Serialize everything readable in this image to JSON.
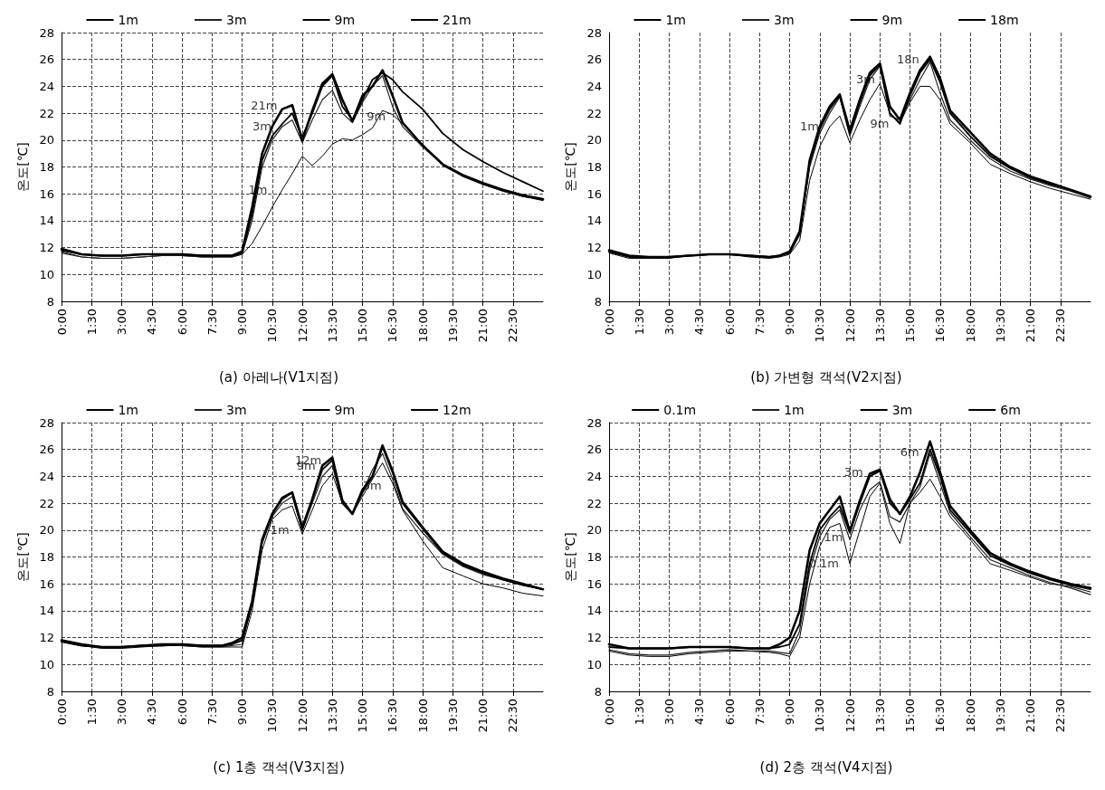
{
  "chart_data": [
    {
      "type": "line",
      "title": "(a) 아레나(V1지점)",
      "ylabel": "온도[℃]",
      "legend": "top",
      "grid": true,
      "xlim": [
        0,
        24
      ],
      "ylim": [
        8,
        28
      ],
      "xticks": [
        {
          "value": 0,
          "label": "0:00"
        },
        {
          "value": 1.5,
          "label": "1:30"
        },
        {
          "value": 3,
          "label": "3:00"
        },
        {
          "value": 4.5,
          "label": "4:30"
        },
        {
          "value": 6,
          "label": "6:00"
        },
        {
          "value": 7.5,
          "label": "7:30"
        },
        {
          "value": 9,
          "label": "9:00"
        },
        {
          "value": 10.5,
          "label": "10:30"
        },
        {
          "value": 12,
          "label": "12:00"
        },
        {
          "value": 13.5,
          "label": "13:30"
        },
        {
          "value": 15,
          "label": "15:00"
        },
        {
          "value": 16.5,
          "label": "16:30"
        },
        {
          "value": 18,
          "label": "18:00"
        },
        {
          "value": 19.5,
          "label": "19:30"
        },
        {
          "value": 21,
          "label": "21:00"
        },
        {
          "value": 22.5,
          "label": "22:30"
        }
      ],
      "yticks": [
        8,
        10,
        12,
        14,
        16,
        18,
        20,
        22,
        24,
        26,
        28
      ],
      "x": [
        0,
        1,
        2,
        3,
        4,
        5,
        6,
        7,
        8,
        8.5,
        9,
        9.5,
        10,
        10.5,
        11,
        11.5,
        12,
        12.5,
        13,
        13.5,
        14,
        14.5,
        15,
        15.5,
        16,
        16.5,
        17,
        18,
        19,
        20,
        21,
        22,
        23,
        24
      ],
      "series": [
        {
          "name": "1m",
          "color": "#000000",
          "values": [
            11.7,
            11.3,
            11.2,
            11.2,
            11.3,
            11.4,
            11.4,
            11.3,
            11.3,
            11.3,
            11.5,
            12.3,
            13.6,
            15,
            16.3,
            17.5,
            18.8,
            18.1,
            18.8,
            19.7,
            20.1,
            20,
            20.4,
            20.9,
            22.2,
            21.9,
            21.2,
            19.7,
            18.1,
            17.3,
            16.7,
            16.2,
            15.8,
            15.5
          ]
        },
        {
          "name": "3m",
          "color": "#222222",
          "values": [
            11.6,
            11.3,
            11.2,
            11.2,
            11.3,
            11.4,
            11.4,
            11.3,
            11.3,
            11.3,
            11.5,
            14,
            18,
            20,
            21,
            21.5,
            19.8,
            21.5,
            23,
            23.7,
            22,
            21.3,
            22.8,
            24,
            24.8,
            22.5,
            21,
            19.5,
            18.2,
            17.3,
            16.7,
            16.2,
            15.8,
            15.6
          ]
        },
        {
          "name": "9m",
          "color": "#000000",
          "values": [
            11.8,
            11.5,
            11.4,
            11.4,
            11.5,
            11.5,
            11.5,
            11.4,
            11.4,
            11.4,
            11.6,
            14.5,
            18.5,
            20.3,
            21.2,
            22,
            20.2,
            22,
            24,
            24.8,
            22.5,
            21.5,
            23,
            24.5,
            25,
            24.5,
            23.6,
            22.3,
            20.5,
            19.3,
            18.4,
            17.6,
            16.9,
            16.2
          ]
        },
        {
          "name": "21m",
          "color": "#000000",
          "values": [
            11.9,
            11.5,
            11.4,
            11.4,
            11.5,
            11.5,
            11.5,
            11.4,
            11.4,
            11.4,
            11.7,
            15,
            19,
            21,
            22.3,
            22.6,
            20,
            22.2,
            24.2,
            24.9,
            23,
            21.4,
            23.3,
            24,
            25.2,
            23.3,
            21.3,
            19.6,
            18.2,
            17.4,
            16.8,
            16.3,
            15.9,
            15.6
          ]
        }
      ],
      "annotations": [
        {
          "text": "21m",
          "x": 11.3,
          "y": 22.6
        },
        {
          "text": "3m",
          "x": 11,
          "y": 21
        },
        {
          "text": "1m",
          "x": 10.8,
          "y": 16.3
        },
        {
          "text": "9m",
          "x": 16.7,
          "y": 21.8
        }
      ]
    },
    {
      "type": "line",
      "title": "(b) 가변형 객석(V2지점)",
      "ylabel": "온도[℃]",
      "legend": "top",
      "grid": "x",
      "xlim": [
        0,
        24
      ],
      "ylim": [
        8,
        28
      ],
      "xticks": [
        {
          "value": 0,
          "label": "0:00"
        },
        {
          "value": 1.5,
          "label": "1:30"
        },
        {
          "value": 3,
          "label": "3:00"
        },
        {
          "value": 4.5,
          "label": "4:30"
        },
        {
          "value": 6,
          "label": "6:00"
        },
        {
          "value": 7.5,
          "label": "7:30"
        },
        {
          "value": 9,
          "label": "9:00"
        },
        {
          "value": 10.5,
          "label": "10:30"
        },
        {
          "value": 12,
          "label": "12:00"
        },
        {
          "value": 13.5,
          "label": "13:30"
        },
        {
          "value": 15,
          "label": "15:00"
        },
        {
          "value": 16.5,
          "label": "16:30"
        },
        {
          "value": 18,
          "label": "18:00"
        },
        {
          "value": 19.5,
          "label": "19:30"
        },
        {
          "value": 21,
          "label": "21:00"
        },
        {
          "value": 22.5,
          "label": "22:30"
        }
      ],
      "yticks": [
        8,
        10,
        12,
        14,
        16,
        18,
        20,
        22,
        24,
        26,
        28
      ],
      "x": [
        0,
        1,
        2,
        3,
        4,
        5,
        6,
        7,
        8,
        8.5,
        9,
        9.5,
        10,
        10.5,
        11,
        11.5,
        12,
        12.5,
        13,
        13.5,
        14,
        14.5,
        15,
        15.5,
        16,
        16.5,
        17,
        18,
        19,
        20,
        21,
        22,
        23,
        24
      ],
      "series": [
        {
          "name": "1m",
          "color": "#000000",
          "values": [
            11.6,
            11.2,
            11.2,
            11.2,
            11.4,
            11.5,
            11.5,
            11.3,
            11.2,
            11.3,
            11.5,
            12.5,
            17,
            19.5,
            21,
            21.8,
            19.8,
            21.5,
            23,
            24.2,
            22,
            21.3,
            22.8,
            24,
            24,
            23,
            21.2,
            19.8,
            18.2,
            17.5,
            16.9,
            16.4,
            16,
            15.6
          ]
        },
        {
          "name": "3m",
          "color": "#222222",
          "values": [
            11.7,
            11.3,
            11.3,
            11.3,
            11.4,
            11.5,
            11.5,
            11.4,
            11.3,
            11.4,
            11.6,
            13,
            18,
            20.5,
            22,
            23.2,
            20.3,
            22.5,
            24.5,
            25.5,
            21.8,
            21.5,
            23,
            24.5,
            25.8,
            23.5,
            21.5,
            20,
            18.6,
            17.7,
            17.1,
            16.6,
            16.2,
            15.7
          ]
        },
        {
          "name": "9m",
          "color": "#000000",
          "values": [
            11.7,
            11.3,
            11.3,
            11.3,
            11.4,
            11.5,
            11.5,
            11.4,
            11.3,
            11.4,
            11.6,
            13,
            18.3,
            20.8,
            22.3,
            23.3,
            20.5,
            22.8,
            24.8,
            25.6,
            22,
            21.2,
            23.3,
            25,
            26,
            24.3,
            22,
            20.3,
            18.8,
            17.9,
            17.2,
            16.7,
            16.3,
            15.8
          ]
        },
        {
          "name": "18m",
          "color": "#000000",
          "values": [
            11.8,
            11.4,
            11.3,
            11.3,
            11.4,
            11.5,
            11.5,
            11.4,
            11.3,
            11.4,
            11.7,
            13.2,
            18.5,
            21,
            22.5,
            23.4,
            20.7,
            23,
            25,
            25.7,
            22.5,
            21.5,
            23.5,
            25.2,
            26.2,
            24.6,
            22.2,
            20.6,
            19,
            18,
            17.3,
            16.8,
            16.3,
            15.8
          ]
        }
      ],
      "annotations": [
        {
          "text": "18n",
          "x": 16,
          "y": 26
        },
        {
          "text": "3m",
          "x": 13.8,
          "y": 24.5
        },
        {
          "text": "1m",
          "x": 11,
          "y": 21
        },
        {
          "text": "9m",
          "x": 14.5,
          "y": 21.2
        }
      ]
    },
    {
      "type": "line",
      "title": "(c) 1층 객석(V3지점)",
      "ylabel": "온도[℃]",
      "legend": "top",
      "grid": true,
      "xlim": [
        0,
        24
      ],
      "ylim": [
        8,
        28
      ],
      "xticks": [
        {
          "value": 0,
          "label": "0:00"
        },
        {
          "value": 1.5,
          "label": "1:30"
        },
        {
          "value": 3,
          "label": "3:00"
        },
        {
          "value": 4.5,
          "label": "4:30"
        },
        {
          "value": 6,
          "label": "6:00"
        },
        {
          "value": 7.5,
          "label": "7:30"
        },
        {
          "value": 9,
          "label": "9:00"
        },
        {
          "value": 10.5,
          "label": "10:30"
        },
        {
          "value": 12,
          "label": "12:00"
        },
        {
          "value": 13.5,
          "label": "13:30"
        },
        {
          "value": 15,
          "label": "15:00"
        },
        {
          "value": 16.5,
          "label": "16:30"
        },
        {
          "value": 18,
          "label": "18:00"
        },
        {
          "value": 19.5,
          "label": "19:30"
        },
        {
          "value": 21,
          "label": "21:00"
        },
        {
          "value": 22.5,
          "label": "22:30"
        }
      ],
      "yticks": [
        8,
        10,
        12,
        14,
        16,
        18,
        20,
        22,
        24,
        26,
        28
      ],
      "x": [
        0,
        1,
        2,
        3,
        4,
        5,
        6,
        7,
        8,
        8.5,
        9,
        9.5,
        10,
        10.5,
        11,
        11.5,
        12,
        12.5,
        13,
        13.5,
        14,
        14.5,
        15,
        15.5,
        16,
        16.5,
        17,
        18,
        19,
        20,
        21,
        22,
        23,
        24
      ],
      "series": [
        {
          "name": "1m",
          "color": "#000000",
          "values": [
            11.7,
            11.4,
            11.2,
            11.2,
            11.3,
            11.4,
            11.4,
            11.3,
            11.3,
            11.3,
            11.3,
            14,
            18.5,
            20.8,
            21.5,
            21.8,
            19.7,
            21.5,
            23.3,
            24.2,
            22,
            21.2,
            22.5,
            23.8,
            25,
            23.5,
            21.5,
            19.2,
            17.2,
            16.6,
            16,
            15.7,
            15.3,
            15.1
          ]
        },
        {
          "name": "3m",
          "color": "#222222",
          "values": [
            11.7,
            11.4,
            11.3,
            11.3,
            11.4,
            11.4,
            11.4,
            11.3,
            11.3,
            11.4,
            11.5,
            14.5,
            19,
            21,
            22,
            22.5,
            20,
            22,
            24,
            24.8,
            22,
            21.2,
            22.8,
            24.5,
            25.7,
            23.8,
            21.6,
            19.8,
            18.2,
            17.3,
            16.7,
            16.3,
            15.9,
            15.6
          ]
        },
        {
          "name": "9m",
          "color": "#000000",
          "values": [
            11.7,
            11.4,
            11.3,
            11.3,
            11.4,
            11.4,
            11.5,
            11.4,
            11.4,
            11.5,
            11.8,
            14.5,
            19.2,
            21.2,
            22.3,
            22.8,
            20,
            22.3,
            24.5,
            25.2,
            22,
            21.2,
            22.8,
            24,
            26.2,
            24.3,
            22,
            20.1,
            18.3,
            17.4,
            16.8,
            16.3,
            15.9,
            15.6
          ]
        },
        {
          "name": "12m",
          "color": "#000000",
          "values": [
            11.8,
            11.5,
            11.3,
            11.3,
            11.4,
            11.5,
            11.5,
            11.4,
            11.4,
            11.6,
            12,
            14.7,
            19.3,
            21.2,
            22.4,
            22.8,
            20.2,
            22.3,
            24.8,
            25.4,
            22.2,
            21.2,
            23,
            24,
            26.3,
            24.4,
            22.1,
            20.2,
            18.4,
            17.5,
            16.9,
            16.4,
            16,
            15.6
          ]
        }
      ],
      "annotations": [
        {
          "text": "12m",
          "x": 13.5,
          "y": 25.2
        },
        {
          "text": "9m",
          "x": 13.2,
          "y": 24.8
        },
        {
          "text": "1m",
          "x": 11.9,
          "y": 20
        },
        {
          "text": "3m",
          "x": 16.5,
          "y": 23.3
        }
      ]
    },
    {
      "type": "line",
      "title": "(d) 2층 객석(V4지점)",
      "ylabel": "온도[℃]",
      "legend": "top",
      "grid": true,
      "xlim": [
        0,
        24
      ],
      "ylim": [
        8,
        28
      ],
      "xticks": [
        {
          "value": 0,
          "label": "0:00"
        },
        {
          "value": 1.5,
          "label": "1:30"
        },
        {
          "value": 3,
          "label": "3:00"
        },
        {
          "value": 4.5,
          "label": "4:30"
        },
        {
          "value": 6,
          "label": "6:00"
        },
        {
          "value": 7.5,
          "label": "7:30"
        },
        {
          "value": 9,
          "label": "9:00"
        },
        {
          "value": 10.5,
          "label": "10:30"
        },
        {
          "value": 12,
          "label": "12:00"
        },
        {
          "value": 13.5,
          "label": "13:30"
        },
        {
          "value": 15,
          "label": "15:00"
        },
        {
          "value": 16.5,
          "label": "16:30"
        },
        {
          "value": 18,
          "label": "18:00"
        },
        {
          "value": 19.5,
          "label": "19:30"
        },
        {
          "value": 21,
          "label": "21:00"
        },
        {
          "value": 22.5,
          "label": "22:30"
        }
      ],
      "yticks": [
        8,
        10,
        12,
        14,
        16,
        18,
        20,
        22,
        24,
        26,
        28
      ],
      "x": [
        0,
        1,
        2,
        3,
        4,
        5,
        6,
        7,
        8,
        8.5,
        9,
        9.5,
        10,
        10.5,
        11,
        11.5,
        12,
        12.5,
        13,
        13.5,
        14,
        14.5,
        15,
        15.5,
        16,
        16.5,
        17,
        18,
        19,
        20,
        21,
        22,
        23,
        24
      ],
      "series": [
        {
          "name": "0.1m",
          "color": "#000000",
          "values": [
            11,
            10.7,
            10.6,
            10.6,
            10.8,
            10.9,
            11,
            11,
            10.9,
            10.8,
            10.6,
            12,
            16,
            18.8,
            20.2,
            20.5,
            17.5,
            20,
            22.5,
            23.5,
            20.5,
            19,
            22,
            22.8,
            23.8,
            22.5,
            21,
            19.3,
            17.5,
            17,
            16.5,
            16,
            15.8,
            15.4
          ]
        },
        {
          "name": "1m",
          "color": "#222222",
          "values": [
            11.1,
            10.8,
            10.7,
            10.7,
            10.9,
            11,
            11.1,
            11,
            11,
            10.9,
            10.8,
            12.5,
            17,
            19.5,
            20.8,
            21.5,
            19.3,
            21.5,
            23,
            23.6,
            21,
            20.6,
            22,
            23.2,
            25.7,
            23.5,
            21.3,
            19.5,
            17.8,
            17.2,
            16.6,
            16.1,
            15.7,
            15.2
          ]
        },
        {
          "name": "3m",
          "color": "#000000",
          "values": [
            11.3,
            11.2,
            11.2,
            11.2,
            11.3,
            11.3,
            11.3,
            11.2,
            11.2,
            11.3,
            11.5,
            13,
            17.5,
            20,
            21,
            21.8,
            19.8,
            22,
            24,
            24.4,
            22,
            21.2,
            22.3,
            23.5,
            26,
            24,
            21.5,
            19.8,
            18.1,
            17.4,
            16.8,
            16.3,
            15.9,
            15.6
          ]
        },
        {
          "name": "6m",
          "color": "#000000",
          "values": [
            11.5,
            11.2,
            11.2,
            11.2,
            11.3,
            11.3,
            11.3,
            11.2,
            11.2,
            11.5,
            12,
            14,
            18.5,
            20.5,
            21.5,
            22.5,
            19.9,
            22.2,
            24.2,
            24.5,
            22.3,
            21.2,
            22.5,
            24.3,
            26.6,
            24.3,
            21.8,
            20,
            18.3,
            17.5,
            16.9,
            16.4,
            16,
            15.7
          ]
        }
      ],
      "annotations": [
        {
          "text": "6m",
          "x": 16,
          "y": 25.8
        },
        {
          "text": "3m",
          "x": 13.2,
          "y": 24.3
        },
        {
          "text": "1m",
          "x": 12.2,
          "y": 19.5
        },
        {
          "text": "0.1m",
          "x": 12,
          "y": 17.5
        }
      ]
    }
  ]
}
